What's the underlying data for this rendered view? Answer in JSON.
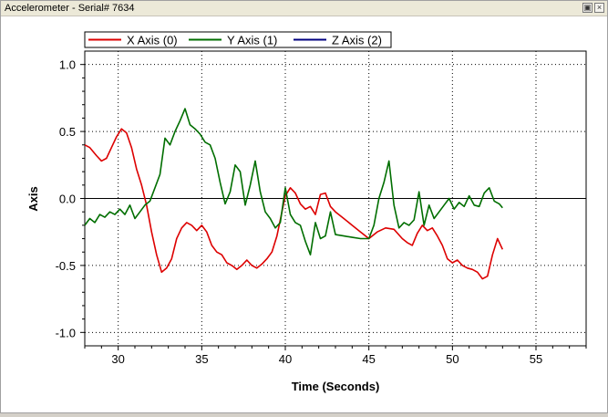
{
  "window": {
    "title": "Accelerometer - Serial# 7634",
    "restore_icon": "restore-icon",
    "close_icon": "close-icon"
  },
  "chart_data": {
    "type": "line",
    "title": "",
    "xlabel": "Time (Seconds)",
    "ylabel": "Axis",
    "xlim": [
      28,
      58
    ],
    "ylim": [
      -1.1,
      1.1
    ],
    "xticks": [
      30,
      35,
      40,
      45,
      50,
      55
    ],
    "xtick_labels": [
      "30",
      "35",
      "40",
      "45",
      "50",
      "55"
    ],
    "yticks": [
      -1.0,
      -0.5,
      0.0,
      0.5,
      1.0
    ],
    "ytick_labels": [
      "-1.0",
      "-0.5",
      "0.0",
      "0.5",
      "1.0"
    ],
    "grid": true,
    "legend": "top-left",
    "series": [
      {
        "name": "X Axis (0)",
        "color": "#dd0000",
        "x": [
          28.0,
          28.3,
          28.7,
          29.0,
          29.3,
          29.6,
          29.9,
          30.2,
          30.5,
          30.8,
          31.1,
          31.4,
          31.7,
          32.0,
          32.3,
          32.6,
          32.9,
          33.2,
          33.5,
          33.8,
          34.1,
          34.4,
          34.7,
          35.0,
          35.3,
          35.6,
          35.9,
          36.2,
          36.5,
          36.8,
          37.1,
          37.4,
          37.7,
          38.0,
          38.3,
          38.6,
          38.9,
          39.2,
          39.5,
          39.8,
          40.0,
          40.3,
          40.6,
          40.9,
          41.2,
          41.5,
          41.8,
          42.1,
          42.4,
          42.7,
          43.0,
          43.5,
          44.0,
          44.5,
          45.0,
          45.5,
          46.0,
          46.5,
          47.0,
          47.3,
          47.6,
          47.9,
          48.2,
          48.5,
          48.8,
          49.1,
          49.4,
          49.7,
          50.0,
          50.3,
          50.6,
          50.9,
          51.2,
          51.5,
          51.8,
          52.1,
          52.4,
          52.7,
          53.0
        ],
        "y": [
          0.4,
          0.38,
          0.32,
          0.28,
          0.3,
          0.38,
          0.46,
          0.52,
          0.49,
          0.38,
          0.22,
          0.1,
          -0.05,
          -0.25,
          -0.42,
          -0.55,
          -0.52,
          -0.45,
          -0.3,
          -0.22,
          -0.18,
          -0.2,
          -0.24,
          -0.2,
          -0.25,
          -0.35,
          -0.4,
          -0.42,
          -0.48,
          -0.5,
          -0.53,
          -0.5,
          -0.46,
          -0.5,
          -0.52,
          -0.49,
          -0.45,
          -0.4,
          -0.28,
          -0.1,
          0.02,
          0.08,
          0.04,
          -0.04,
          -0.08,
          -0.06,
          -0.12,
          0.03,
          0.04,
          -0.06,
          -0.1,
          -0.15,
          -0.2,
          -0.25,
          -0.3,
          -0.25,
          -0.22,
          -0.23,
          -0.3,
          -0.33,
          -0.35,
          -0.26,
          -0.2,
          -0.24,
          -0.22,
          -0.28,
          -0.35,
          -0.45,
          -0.48,
          -0.46,
          -0.5,
          -0.52,
          -0.53,
          -0.55,
          -0.6,
          -0.58,
          -0.42,
          -0.3,
          -0.38
        ]
      },
      {
        "name": "Y Axis (1)",
        "color": "#006e00",
        "x": [
          28.0,
          28.3,
          28.6,
          28.9,
          29.2,
          29.5,
          29.8,
          30.1,
          30.4,
          30.7,
          31.0,
          31.3,
          31.6,
          31.9,
          32.2,
          32.5,
          32.8,
          33.1,
          33.4,
          33.7,
          34.0,
          34.3,
          34.6,
          34.9,
          35.2,
          35.5,
          35.8,
          36.1,
          36.4,
          36.7,
          37.0,
          37.3,
          37.6,
          37.9,
          38.2,
          38.5,
          38.8,
          39.1,
          39.4,
          39.7,
          40.0,
          40.3,
          40.6,
          40.9,
          41.2,
          41.5,
          41.8,
          42.1,
          42.4,
          42.7,
          43.0,
          43.5,
          44.0,
          44.5,
          45.0,
          45.3,
          45.6,
          45.9,
          46.2,
          46.5,
          46.8,
          47.1,
          47.4,
          47.7,
          48.0,
          48.3,
          48.6,
          48.9,
          49.2,
          49.5,
          49.8,
          50.1,
          50.4,
          50.7,
          51.0,
          51.3,
          51.6,
          51.9,
          52.2,
          52.5,
          52.8,
          53.0
        ],
        "y": [
          -0.2,
          -0.15,
          -0.18,
          -0.12,
          -0.14,
          -0.1,
          -0.12,
          -0.08,
          -0.12,
          -0.05,
          -0.15,
          -0.1,
          -0.05,
          -0.02,
          0.08,
          0.18,
          0.45,
          0.4,
          0.5,
          0.58,
          0.67,
          0.55,
          0.52,
          0.48,
          0.42,
          0.4,
          0.3,
          0.12,
          -0.04,
          0.05,
          0.25,
          0.2,
          -0.05,
          0.1,
          0.28,
          0.05,
          -0.1,
          -0.15,
          -0.22,
          -0.18,
          0.08,
          -0.12,
          -0.18,
          -0.2,
          -0.32,
          -0.42,
          -0.18,
          -0.3,
          -0.28,
          -0.1,
          -0.27,
          -0.28,
          -0.29,
          -0.3,
          -0.3,
          -0.2,
          0.0,
          0.12,
          0.28,
          -0.05,
          -0.22,
          -0.18,
          -0.2,
          -0.16,
          0.05,
          -0.2,
          -0.05,
          -0.15,
          -0.1,
          -0.05,
          0.0,
          -0.08,
          -0.03,
          -0.06,
          0.02,
          -0.05,
          -0.06,
          0.04,
          0.08,
          -0.02,
          -0.04,
          -0.07
        ]
      },
      {
        "name": "Z Axis (2)",
        "color": "#000080",
        "x": [],
        "y": []
      }
    ]
  }
}
